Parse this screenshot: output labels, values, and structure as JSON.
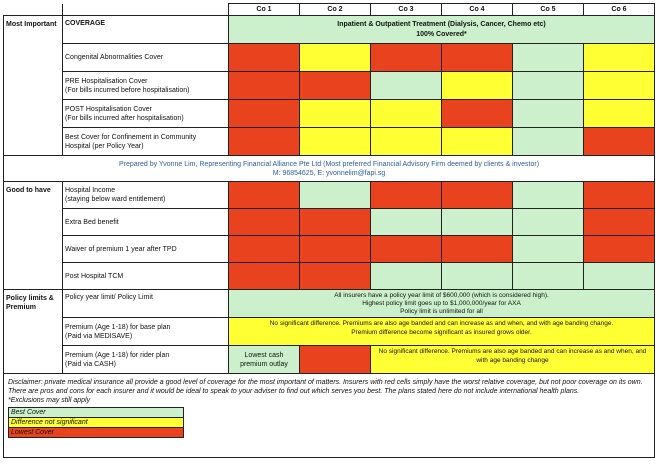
{
  "colors": {
    "best": "#ccf0cc",
    "ok": "#ffff33",
    "lowest": "#e8421e"
  },
  "header": {
    "companies": [
      "Co 1",
      "Co 2",
      "Co 3",
      "Co 4",
      "Co 5",
      "Co 6"
    ]
  },
  "sections": {
    "most_important": "Most Important",
    "good_to_have": "Good to have",
    "policy_limits": "Policy limits & Premium"
  },
  "coverage": {
    "label": "COVERAGE",
    "title": "Inpatient & Outpatient Treatment (Dialysis, Cancer, Chemo etc)",
    "subtitle": "100% Covered*"
  },
  "rows": {
    "congenital": {
      "line1": "Congenital Abnormalities Cover"
    },
    "pre_hosp": {
      "line1": "PRE Hospitalisation Cover",
      "line2": "(For bills incurred before hospitalisation)"
    },
    "post_hosp": {
      "line1": "POST Hospitalisation Cover",
      "line2": "(For bills incurred after hospitalisation)"
    },
    "community": {
      "line1": "Best Cover for Confinement in Community",
      "line2": "Hospital (per Policy Year)"
    },
    "hosp_income": {
      "line1": "Hospital Income",
      "line2": "(staying below ward entitlement)"
    },
    "extra_bed": {
      "line1": "Extra Bed benefit"
    },
    "waiver": {
      "line1": "Waiver of premium 1 year after TPD"
    },
    "post_tcm": {
      "line1": "Post Hospital TCM"
    },
    "policy_limit": {
      "line1": "Policy year limit/ Policy Limit",
      "note1": "All insurers have a policy year limit of $600,000 (which is considered high).",
      "note2": "Highest policy limit goes up to $1,000,000/year for AXA",
      "note3": "Policy limit is unlimited for all"
    },
    "premium_base": {
      "line1": "Premium (Age 1-18) for base plan",
      "line2": "(Paid via MEDISAVE)",
      "note1": "No significant difference. Premiums are also age banded and can increase as and when, and with age banding change.",
      "note2": "Premium difference become significant as insured grows older."
    },
    "premium_rider": {
      "line1": "Premium (Age 1-18) for rider plan",
      "line2": "(Paid via CASH)",
      "co1_note": "Lowest cash premium outlay",
      "note": "No significant difference. Premiums are also age banded and can increase as and when, and with age banding change"
    }
  },
  "prepared": {
    "line1": "Prepared by Yvonne Lim, Representing Financial Alliance Pte Ltd (Most preferred Financial Advisory Firm deemed by clients & investor)",
    "line2": "M: 96854625, E: yvonnelim@fapi.sg"
  },
  "disclaimer": {
    "text": "Disclaimer: private medical insurance all provide a good level of coverage for the most important of matters. Insurers with red cells simply have the worst relative coverage, but not poor coverage on its own. There are pros and cons for each insurer and it would be ideal to speak to your adviser to find out which serves you best. The plans stated here do not include international health plans.",
    "exclusions": "*Exclusions may still apply"
  },
  "legend": {
    "best": "Best Cover",
    "ok": "Difference not significant",
    "lowest": "Lowest Cover"
  },
  "matrix": {
    "congenital": [
      "lowest",
      "ok",
      "lowest",
      "lowest",
      "best",
      "ok"
    ],
    "pre_hosp": [
      "lowest",
      "lowest",
      "best",
      "ok",
      "best",
      "ok"
    ],
    "post_hosp": [
      "lowest",
      "ok",
      "ok",
      "lowest",
      "best",
      "ok"
    ],
    "community": [
      "lowest",
      "ok",
      "ok",
      "ok",
      "best",
      "lowest"
    ],
    "hosp_income": [
      "lowest",
      "best",
      "lowest",
      "lowest",
      "best",
      "lowest"
    ],
    "extra_bed": [
      "lowest",
      "lowest",
      "best",
      "best",
      "best",
      "lowest"
    ],
    "waiver": [
      "lowest",
      "lowest",
      "lowest",
      "lowest",
      "best",
      "lowest"
    ],
    "post_tcm": [
      "lowest",
      "lowest",
      "best",
      "best",
      "best",
      "best"
    ]
  }
}
